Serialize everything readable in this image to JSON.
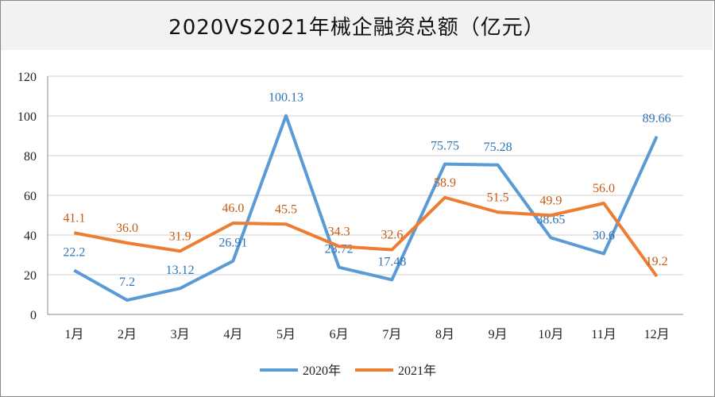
{
  "chart_data": {
    "type": "line",
    "title": "2020VS2021年械企融资总额（亿元）",
    "categories": [
      "1月",
      "2月",
      "3月",
      "4月",
      "5月",
      "6月",
      "7月",
      "8月",
      "9月",
      "10月",
      "11月",
      "12月"
    ],
    "ylim": [
      0,
      120
    ],
    "yticks": [
      0,
      20,
      40,
      60,
      80,
      100,
      120
    ],
    "grid": true,
    "legend": "bottom",
    "series": [
      {
        "name": "2020年",
        "color": "#5b9bd5",
        "label_color": "#2e75b6",
        "values": [
          22.2,
          7.2,
          13.12,
          26.91,
          100.13,
          23.72,
          17.48,
          75.75,
          75.28,
          38.65,
          30.6,
          89.66
        ],
        "labels": [
          "22.2",
          "7.2",
          "13.12",
          "26.91",
          "100.13",
          "23.72",
          "17.48",
          "75.75",
          "75.28",
          "38.65",
          "30.6",
          "89.66"
        ]
      },
      {
        "name": "2021年",
        "color": "#ed7d31",
        "label_color": "#c55a11",
        "values": [
          41.1,
          36.0,
          31.9,
          46.0,
          45.5,
          34.3,
          32.6,
          58.9,
          51.5,
          49.9,
          56.0,
          19.2
        ],
        "labels": [
          "41.1",
          "36.0",
          "31.9",
          "46.0",
          "45.5",
          "34.3",
          "32.6",
          "58.9",
          "51.5",
          "49.9",
          "56.0",
          "19.2"
        ]
      }
    ]
  }
}
